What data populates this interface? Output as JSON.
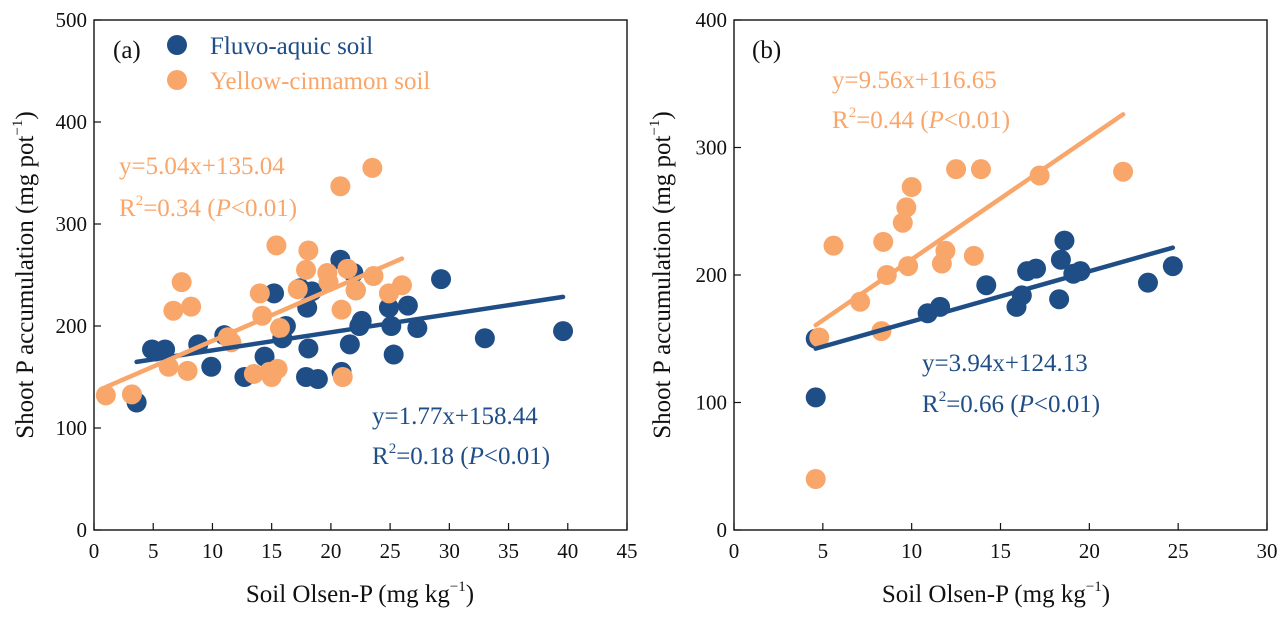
{
  "colors": {
    "fluvo": "#1f4e87",
    "yellow": "#f9a66b",
    "axis": "#111111"
  },
  "chart_data": [
    {
      "type": "scatter",
      "panel_label": "(a)",
      "xlabel": "Soil Olsen-P (mg kg",
      "xlabel_sup": "−1",
      "xlabel_end": ")",
      "ylabel": "Shoot P accumulation (mg pot",
      "ylabel_sup": "−1",
      "ylabel_end": ")",
      "xlim": [
        0,
        45
      ],
      "ylim": [
        0,
        500
      ],
      "xticks": [
        0,
        5,
        10,
        15,
        20,
        25,
        30,
        35,
        40,
        45
      ],
      "yticks": [
        0,
        100,
        200,
        300,
        400,
        500
      ],
      "legend": [
        {
          "name": "Fluvo-aquic soil",
          "color": "#1f4e87"
        },
        {
          "name": "Yellow-cinnamon soil",
          "color": "#f9a66b"
        }
      ],
      "series": [
        {
          "name": "Fluvo-aquic soil",
          "color": "#1f4e87",
          "points": [
            [
              3.6,
              125
            ],
            [
              4.9,
              177
            ],
            [
              5.2,
              175
            ],
            [
              6.0,
              177
            ],
            [
              8.8,
              182
            ],
            [
              9.9,
              160
            ],
            [
              11.0,
              191
            ],
            [
              12.7,
              150
            ],
            [
              14.4,
              170
            ],
            [
              15.2,
              232
            ],
            [
              15.9,
              188
            ],
            [
              16.2,
              200
            ],
            [
              17.4,
              237
            ],
            [
              17.9,
              150
            ],
            [
              18.0,
              218
            ],
            [
              18.1,
              178
            ],
            [
              18.4,
              234
            ],
            [
              18.9,
              148
            ],
            [
              20.8,
              265
            ],
            [
              20.9,
              155
            ],
            [
              21.6,
              182
            ],
            [
              21.9,
              252
            ],
            [
              22.1,
              235
            ],
            [
              22.4,
              200
            ],
            [
              22.6,
              205
            ],
            [
              24.9,
              218
            ],
            [
              25.1,
              200
            ],
            [
              25.3,
              172
            ],
            [
              26.5,
              220
            ],
            [
              27.3,
              198
            ],
            [
              29.3,
              246
            ],
            [
              33.0,
              188
            ],
            [
              39.6,
              195
            ]
          ]
        },
        {
          "name": "Yellow-cinnamon soil",
          "color": "#f9a66b",
          "points": [
            [
              1.0,
              132
            ],
            [
              3.2,
              133
            ],
            [
              6.3,
              160
            ],
            [
              6.7,
              215
            ],
            [
              7.4,
              243
            ],
            [
              7.9,
              156
            ],
            [
              8.2,
              219
            ],
            [
              11.3,
              189
            ],
            [
              11.6,
              184
            ],
            [
              13.5,
              153
            ],
            [
              14.0,
              232
            ],
            [
              14.2,
              210
            ],
            [
              14.8,
              155
            ],
            [
              15.0,
              150
            ],
            [
              15.4,
              279
            ],
            [
              15.5,
              158
            ],
            [
              15.7,
              198
            ],
            [
              17.2,
              236
            ],
            [
              17.9,
              255
            ],
            [
              18.1,
              274
            ],
            [
              19.7,
              252
            ],
            [
              19.8,
              243
            ],
            [
              20.8,
              337
            ],
            [
              20.9,
              216
            ],
            [
              21.0,
              150
            ],
            [
              21.4,
              256
            ],
            [
              22.1,
              235
            ],
            [
              23.5,
              355
            ],
            [
              23.6,
              249
            ],
            [
              24.9,
              232
            ],
            [
              26.0,
              240
            ]
          ]
        }
      ],
      "fits": [
        {
          "series": "Fluvo-aquic soil",
          "slope": 1.77,
          "intercept": 158.44,
          "x_range": [
            3.6,
            39.6
          ],
          "eq": "y=1.77x+158.44",
          "r2_prefix": "R",
          "r2_sup": "2",
          "r2_mid": "=0.18 (",
          "p_sym": "P",
          "p_rest": "<0.01)"
        },
        {
          "series": "Yellow-cinnamon soil",
          "slope": 5.04,
          "intercept": 135.04,
          "x_range": [
            1.0,
            26.0
          ],
          "eq": "y=5.04x+135.04",
          "r2_prefix": "R",
          "r2_sup": "2",
          "r2_mid": "=0.34 (",
          "p_sym": "P",
          "p_rest": "<0.01)"
        }
      ]
    },
    {
      "type": "scatter",
      "panel_label": "(b)",
      "xlabel": "Soil Olsen-P (mg kg",
      "xlabel_sup": "−1",
      "xlabel_end": ")",
      "ylabel": "Shoot P accumulation (mg pot",
      "ylabel_sup": "−1",
      "ylabel_end": ")",
      "xlim": [
        0,
        30
      ],
      "ylim": [
        0,
        400
      ],
      "xticks": [
        0,
        5,
        10,
        15,
        20,
        25,
        30
      ],
      "yticks": [
        0,
        100,
        200,
        300,
        400
      ],
      "series": [
        {
          "name": "Fluvo-aquic soil",
          "color": "#1f4e87",
          "points": [
            [
              4.6,
              150
            ],
            [
              4.6,
              104
            ],
            [
              10.9,
              170
            ],
            [
              11.6,
              175
            ],
            [
              14.2,
              192
            ],
            [
              15.9,
              175
            ],
            [
              16.2,
              184
            ],
            [
              16.5,
              203
            ],
            [
              17.0,
              205
            ],
            [
              18.3,
              181
            ],
            [
              18.4,
              212
            ],
            [
              18.6,
              227
            ],
            [
              19.1,
              201
            ],
            [
              19.5,
              203
            ],
            [
              23.3,
              194
            ],
            [
              24.7,
              207
            ]
          ]
        },
        {
          "name": "Yellow-cinnamon soil",
          "color": "#f9a66b",
          "points": [
            [
              4.6,
              40
            ],
            [
              4.8,
              151
            ],
            [
              5.6,
              223
            ],
            [
              7.1,
              179
            ],
            [
              8.3,
              156
            ],
            [
              8.4,
              226
            ],
            [
              8.6,
              200
            ],
            [
              9.5,
              241
            ],
            [
              9.7,
              253
            ],
            [
              9.8,
              207
            ],
            [
              10.0,
              269
            ],
            [
              11.7,
              209
            ],
            [
              11.9,
              219
            ],
            [
              12.5,
              283
            ],
            [
              13.5,
              215
            ],
            [
              13.9,
              283
            ],
            [
              17.2,
              278
            ],
            [
              21.9,
              281
            ]
          ]
        }
      ],
      "fits": [
        {
          "series": "Yellow-cinnamon soil",
          "slope": 9.56,
          "intercept": 116.65,
          "x_range": [
            4.6,
            21.9
          ],
          "eq": "y=9.56x+116.65",
          "r2_prefix": "R",
          "r2_sup": "2",
          "r2_mid": "=0.44 (",
          "p_sym": "P",
          "p_rest": "<0.01)"
        },
        {
          "series": "Fluvo-aquic soil",
          "slope": 3.94,
          "intercept": 124.13,
          "x_range": [
            4.6,
            24.7
          ],
          "eq": "y=3.94x+124.13",
          "r2_prefix": "R",
          "r2_sup": "2",
          "r2_mid": "=0.66 (",
          "p_sym": "P",
          "p_rest": "<0.01)"
        }
      ]
    }
  ]
}
